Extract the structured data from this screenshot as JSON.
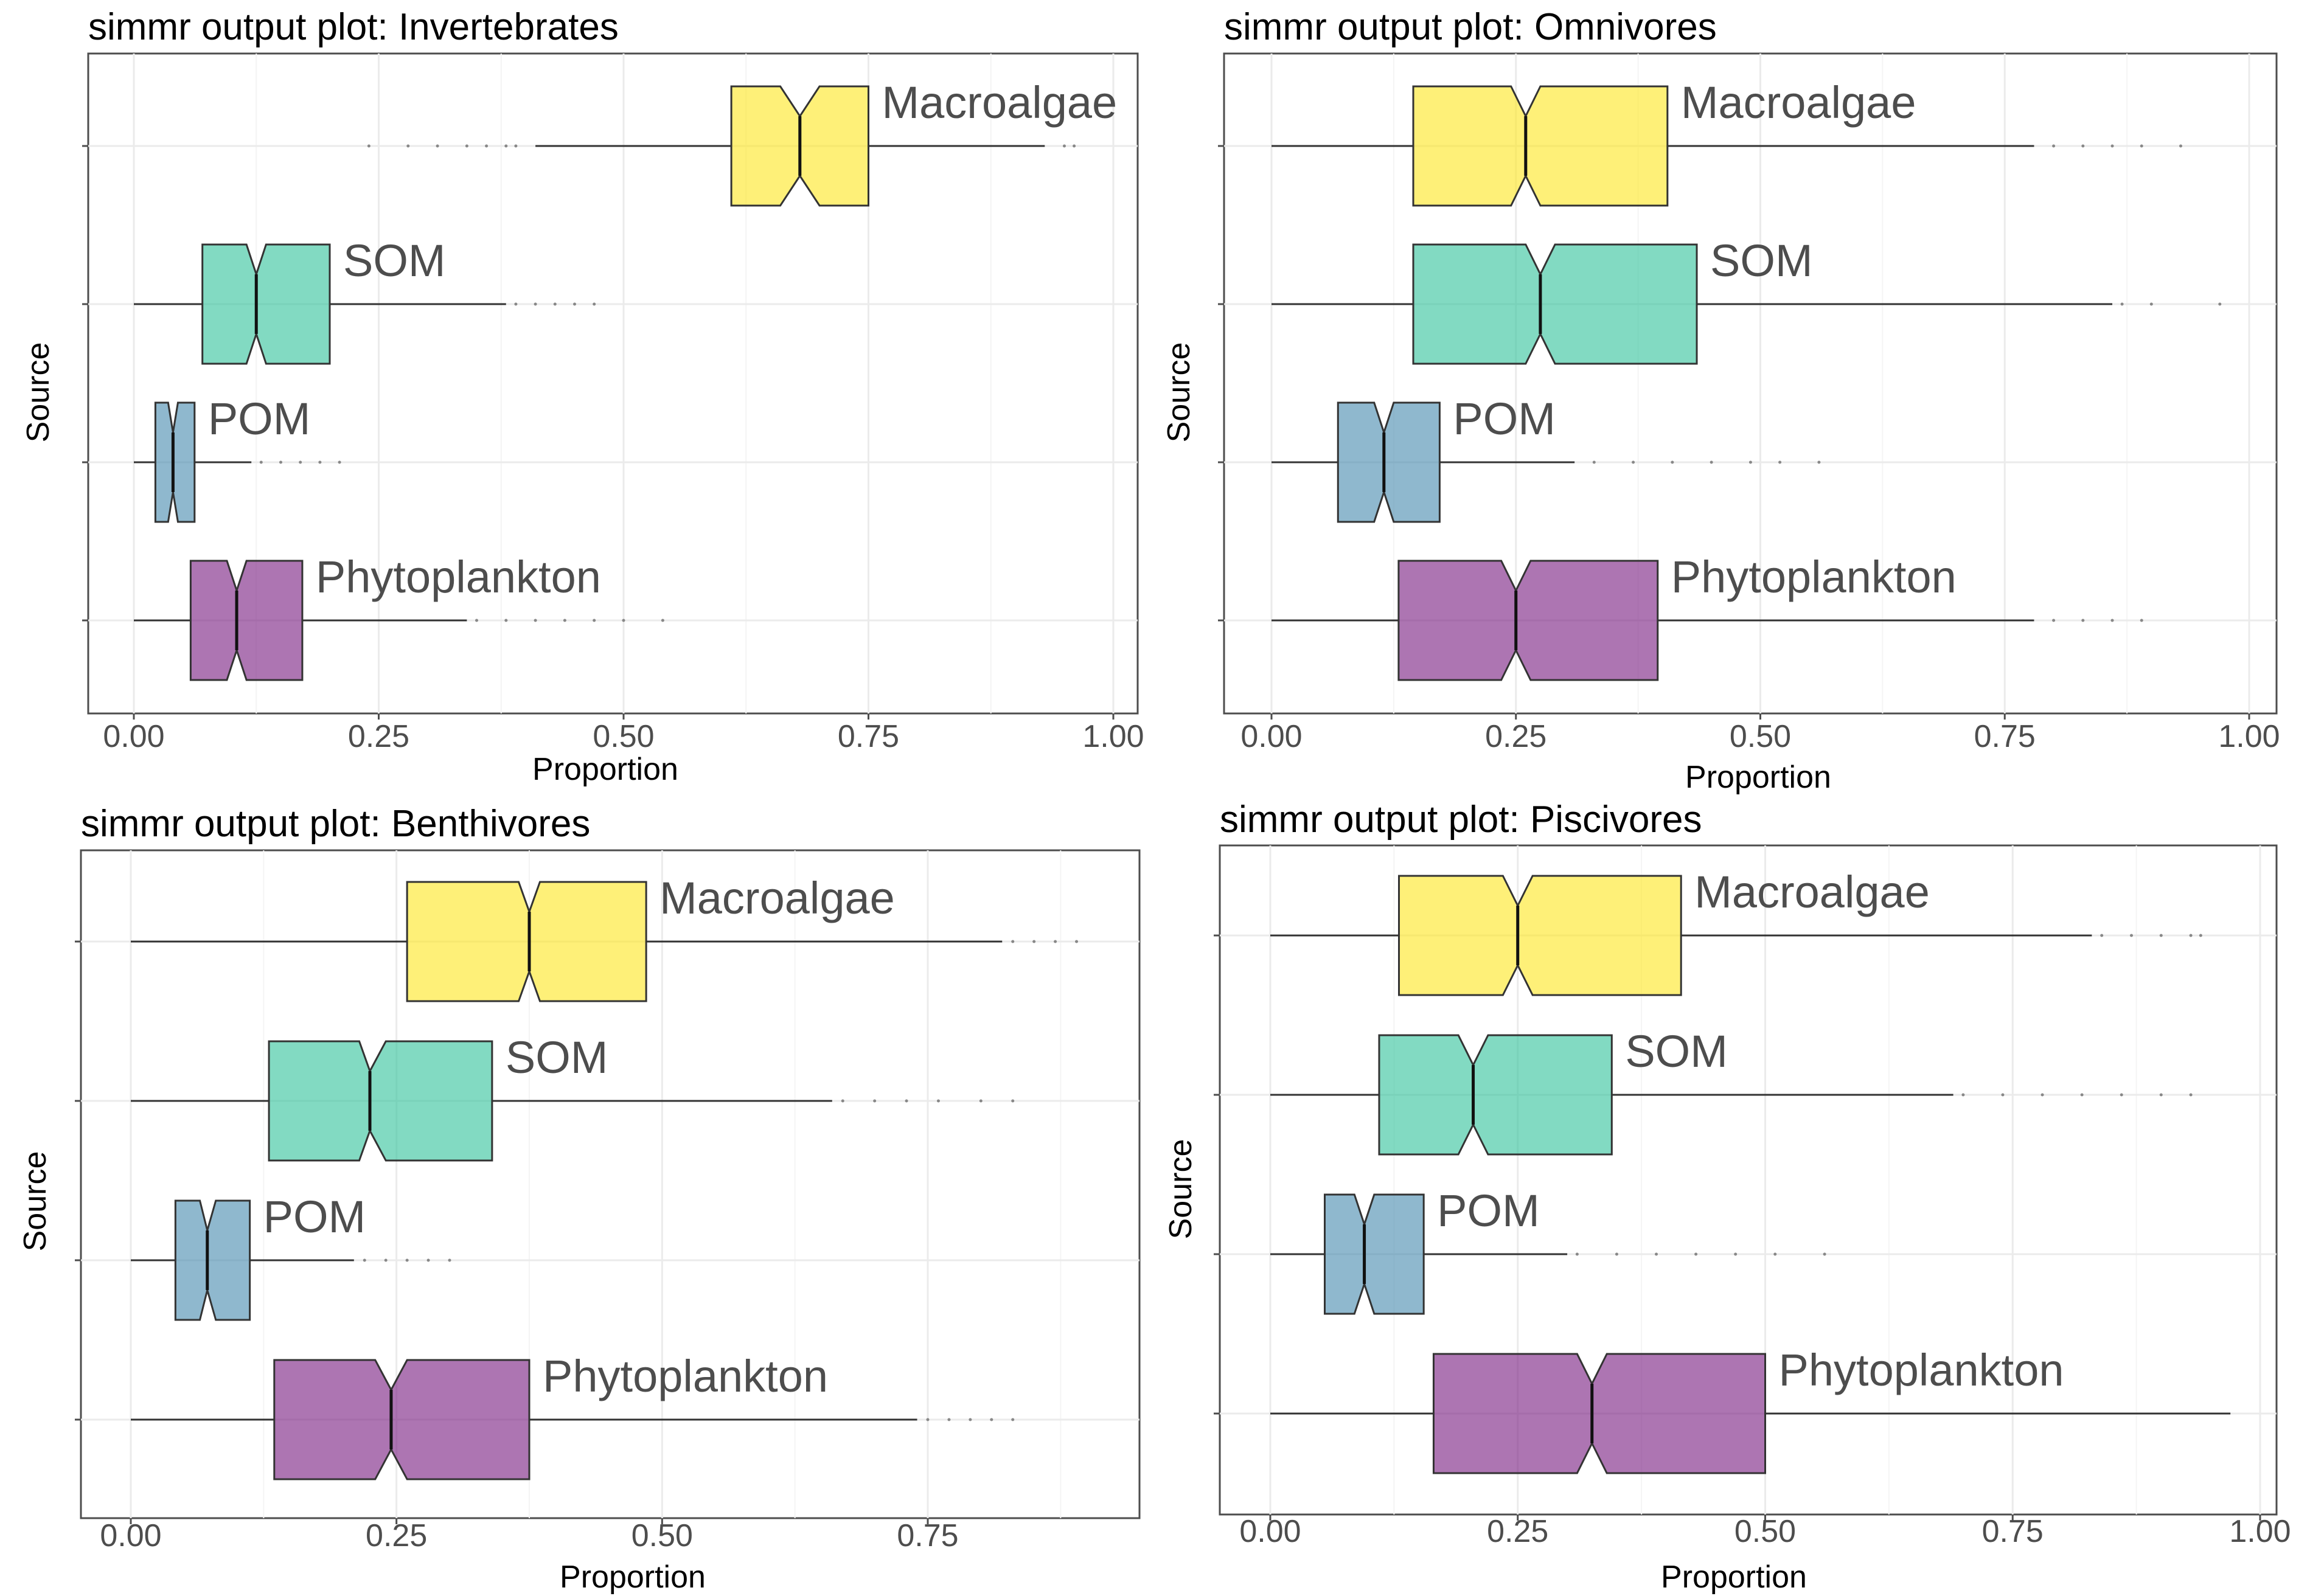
{
  "chart_data": [
    {
      "type": "boxplot",
      "orientation": "horizontal",
      "notched": true,
      "title": "simmr output plot: Invertebrates",
      "xlabel": "Proportion",
      "ylabel": "Source",
      "xlim": [
        0,
        1
      ],
      "xticks": [
        "0.00",
        "0.25",
        "0.50",
        "0.75",
        "1.00"
      ],
      "grid": true,
      "series": [
        {
          "name": "Macroalgae",
          "color": "#FDE725",
          "whisker_low": 0.41,
          "q1": 0.61,
          "median": 0.68,
          "q3": 0.75,
          "whisker_high": 0.93,
          "notch_low": 0.66,
          "notch_high": 0.7,
          "outliers": [
            0.24,
            0.28,
            0.31,
            0.34,
            0.36,
            0.38,
            0.39,
            0.95,
            0.96
          ]
        },
        {
          "name": "SOM",
          "color": "#35C39C",
          "whisker_low": 0.0,
          "q1": 0.07,
          "median": 0.125,
          "q3": 0.2,
          "whisker_high": 0.38,
          "notch_low": 0.115,
          "notch_high": 0.135,
          "outliers": [
            0.39,
            0.41,
            0.43,
            0.45,
            0.47
          ]
        },
        {
          "name": "POM",
          "color": "#4A8DB0",
          "whisker_low": 0.0,
          "q1": 0.022,
          "median": 0.04,
          "q3": 0.062,
          "whisker_high": 0.12,
          "notch_low": 0.035,
          "notch_high": 0.045,
          "outliers": [
            0.13,
            0.15,
            0.17,
            0.19,
            0.21
          ]
        },
        {
          "name": "Phytoplankton",
          "color": "#7B2182",
          "whisker_low": 0.0,
          "q1": 0.058,
          "median": 0.105,
          "q3": 0.172,
          "whisker_high": 0.34,
          "notch_low": 0.095,
          "notch_high": 0.115,
          "outliers": [
            0.35,
            0.38,
            0.41,
            0.44,
            0.47,
            0.5,
            0.54
          ]
        }
      ]
    },
    {
      "type": "boxplot",
      "orientation": "horizontal",
      "notched": true,
      "title": "simmr output plot: Omnivores",
      "xlabel": "Proportion",
      "ylabel": "Source",
      "xlim": [
        0,
        1
      ],
      "xticks": [
        "0.00",
        "0.25",
        "0.50",
        "0.75",
        "1.00"
      ],
      "grid": true,
      "series": [
        {
          "name": "Macroalgae",
          "color": "#FDE725",
          "whisker_low": 0.0,
          "q1": 0.145,
          "median": 0.26,
          "q3": 0.405,
          "whisker_high": 0.78,
          "notch_low": 0.245,
          "notch_high": 0.275,
          "outliers": [
            0.8,
            0.83,
            0.86,
            0.89,
            0.93
          ]
        },
        {
          "name": "SOM",
          "color": "#35C39C",
          "whisker_low": 0.0,
          "q1": 0.145,
          "median": 0.275,
          "q3": 0.435,
          "whisker_high": 0.86,
          "notch_low": 0.26,
          "notch_high": 0.29,
          "outliers": [
            0.87,
            0.9,
            0.97
          ]
        },
        {
          "name": "POM",
          "color": "#4A8DB0",
          "whisker_low": 0.0,
          "q1": 0.068,
          "median": 0.115,
          "q3": 0.172,
          "whisker_high": 0.31,
          "notch_low": 0.105,
          "notch_high": 0.125,
          "outliers": [
            0.33,
            0.37,
            0.41,
            0.45,
            0.49,
            0.52,
            0.56
          ]
        },
        {
          "name": "Phytoplankton",
          "color": "#7B2182",
          "whisker_low": 0.0,
          "q1": 0.13,
          "median": 0.25,
          "q3": 0.395,
          "whisker_high": 0.78,
          "notch_low": 0.235,
          "notch_high": 0.265,
          "outliers": [
            0.8,
            0.83,
            0.86,
            0.89
          ]
        }
      ]
    },
    {
      "type": "boxplot",
      "orientation": "horizontal",
      "notched": true,
      "title": "simmr output plot: Benthivores",
      "xlabel": "Proportion",
      "ylabel": "Source",
      "xlim": [
        -0.04,
        0.95
      ],
      "xticks": [
        "0.00",
        "0.25",
        "0.50",
        "0.75"
      ],
      "grid": true,
      "series": [
        {
          "name": "Macroalgae",
          "color": "#FDE725",
          "whisker_low": 0.0,
          "q1": 0.26,
          "median": 0.375,
          "q3": 0.485,
          "whisker_high": 0.82,
          "notch_low": 0.365,
          "notch_high": 0.385,
          "outliers": [
            0.83,
            0.85,
            0.87,
            0.89
          ]
        },
        {
          "name": "SOM",
          "color": "#35C39C",
          "whisker_low": 0.0,
          "q1": 0.13,
          "median": 0.225,
          "q3": 0.34,
          "whisker_high": 0.66,
          "notch_low": 0.215,
          "notch_high": 0.24,
          "outliers": [
            0.67,
            0.7,
            0.73,
            0.76,
            0.8,
            0.83
          ]
        },
        {
          "name": "POM",
          "color": "#4A8DB0",
          "whisker_low": 0.0,
          "q1": 0.042,
          "median": 0.072,
          "q3": 0.112,
          "whisker_high": 0.21,
          "notch_low": 0.065,
          "notch_high": 0.08,
          "outliers": [
            0.22,
            0.24,
            0.26,
            0.28,
            0.3
          ]
        },
        {
          "name": "Phytoplankton",
          "color": "#7B2182",
          "whisker_low": 0.0,
          "q1": 0.135,
          "median": 0.245,
          "q3": 0.375,
          "whisker_high": 0.74,
          "notch_low": 0.23,
          "notch_high": 0.26,
          "outliers": [
            0.75,
            0.77,
            0.79,
            0.81,
            0.83
          ]
        }
      ]
    },
    {
      "type": "boxplot",
      "orientation": "horizontal",
      "notched": true,
      "title": "simmr output plot: Piscivores",
      "xlabel": "Proportion",
      "ylabel": "Source",
      "xlim": [
        -0.005,
        1.0
      ],
      "xticks": [
        "0.00",
        "0.25",
        "0.50",
        "0.75",
        "1.00"
      ],
      "grid": true,
      "series": [
        {
          "name": "Macroalgae",
          "color": "#FDE725",
          "whisker_low": 0.0,
          "q1": 0.13,
          "median": 0.25,
          "q3": 0.415,
          "whisker_high": 0.83,
          "notch_low": 0.235,
          "notch_high": 0.265,
          "outliers": [
            0.84,
            0.87,
            0.9,
            0.93,
            0.94
          ]
        },
        {
          "name": "SOM",
          "color": "#35C39C",
          "whisker_low": 0.0,
          "q1": 0.11,
          "median": 0.205,
          "q3": 0.345,
          "whisker_high": 0.69,
          "notch_low": 0.19,
          "notch_high": 0.22,
          "outliers": [
            0.7,
            0.74,
            0.78,
            0.82,
            0.86,
            0.9,
            0.93
          ]
        },
        {
          "name": "POM",
          "color": "#4A8DB0",
          "whisker_low": 0.0,
          "q1": 0.055,
          "median": 0.095,
          "q3": 0.155,
          "whisker_high": 0.3,
          "notch_low": 0.085,
          "notch_high": 0.105,
          "outliers": [
            0.31,
            0.35,
            0.39,
            0.43,
            0.47,
            0.51,
            0.56
          ]
        },
        {
          "name": "Phytoplankton",
          "color": "#7B2182",
          "whisker_low": 0.0,
          "q1": 0.165,
          "median": 0.325,
          "q3": 0.5,
          "whisker_high": 0.97,
          "notch_low": 0.31,
          "notch_high": 0.34,
          "outliers": []
        }
      ]
    }
  ]
}
